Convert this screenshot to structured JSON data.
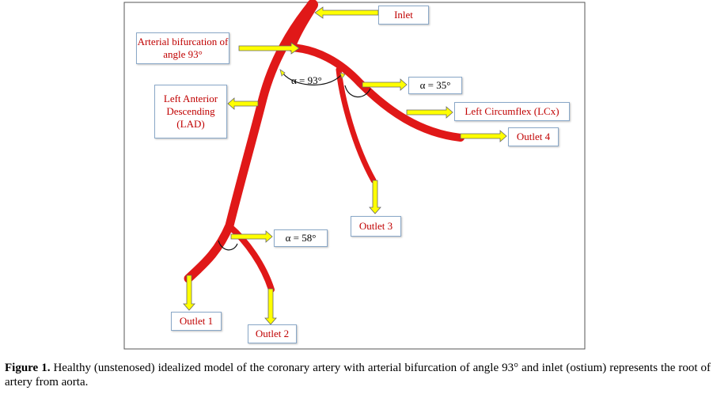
{
  "labels": {
    "inlet": "Inlet",
    "bifurcation": "Arterial bifurcation of angle 93°",
    "lad": "Left Anterior Descending (LAD)",
    "lcx": "Left Circumflex (LCx)",
    "outlet1": "Outlet 1",
    "outlet2": "Outlet 2",
    "outlet3": "Outlet 3",
    "outlet4": "Outlet 4"
  },
  "angles": {
    "a93": "α = 93°",
    "a35": "α = 35°",
    "a58": "α = 58°"
  },
  "caption": {
    "prefix": "Figure 1.",
    "text": " Healthy (unstenosed) idealized model of the coronary artery with arterial bifurcation of angle 93° and inlet (ostium) represents the root of artery from aorta."
  },
  "colors": {
    "artery": "#e01818",
    "arrow_fill": "#ffff00",
    "label_text": "#c00000"
  }
}
